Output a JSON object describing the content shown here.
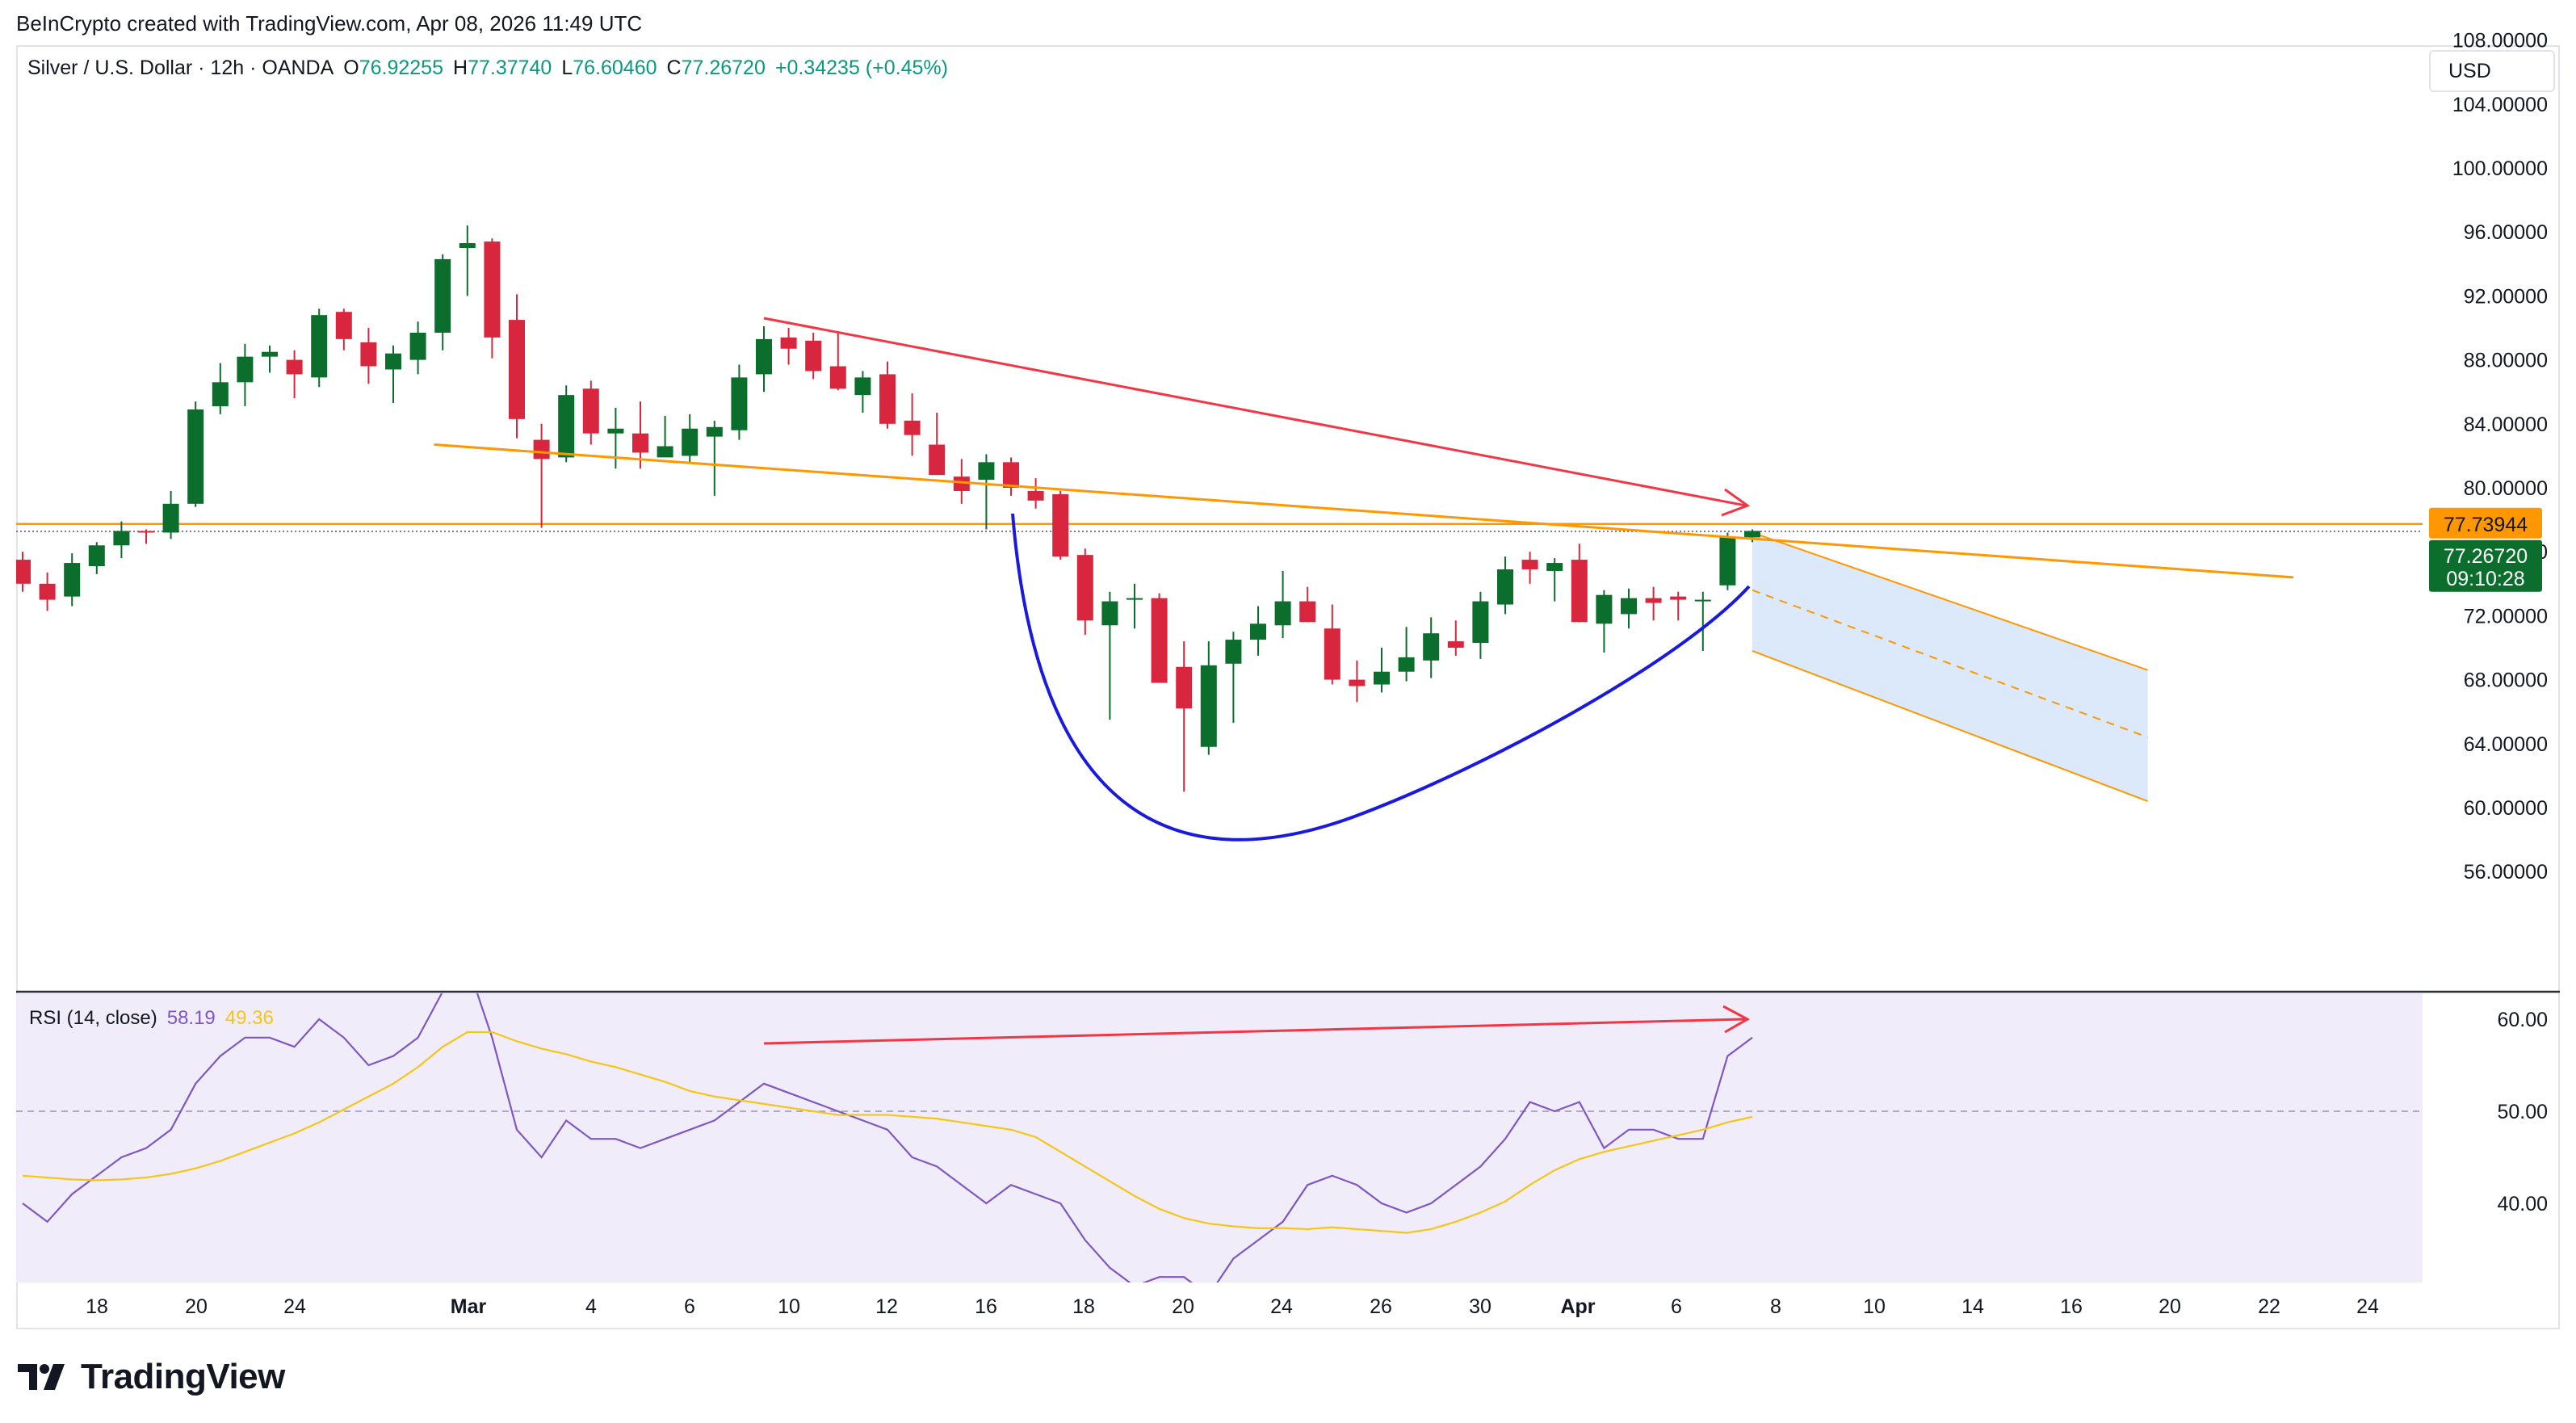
{
  "header": {
    "credit": "BeInCrypto created with TradingView.com, Apr 08, 2026 11:49 UTC"
  },
  "legend": {
    "symbol": "Silver / U.S. Dollar · 12h · OANDA",
    "open_label": "O",
    "open": "76.92255",
    "high_label": "H",
    "high": "77.37740",
    "low_label": "L",
    "low": "76.60460",
    "close_label": "C",
    "close": "77.26720",
    "change": "+0.34235 (+0.45%)"
  },
  "currency_button": "USD",
  "price_badges": {
    "resistance": "77.73944",
    "last_price": "77.26720",
    "countdown": "09:10:28"
  },
  "rsi_legend": {
    "label": "RSI (14, close)",
    "rsi_value": "58.19",
    "ma_value": "49.36"
  },
  "footer": {
    "brand": "TradingView"
  },
  "colors": {
    "up": "#0b6e2c",
    "down": "#d7263d",
    "rsi": "#7e57c2",
    "rsi_ma": "#f5c518",
    "orange": "#ff9800",
    "trend_red": "#f23645",
    "cup_blue": "#1a1adf",
    "forecast_fill": "#d9e8fb"
  },
  "chart_data": [
    {
      "type": "candlestick",
      "title": "Silver / U.S. Dollar · 12h · OANDA",
      "ylim": [
        52.5,
        110
      ],
      "y_ticks": [
        "108.00000",
        "104.00000",
        "100.00000",
        "96.00000",
        "92.00000",
        "88.00000",
        "84.00000",
        "80.00000",
        "76.00000",
        "72.00000",
        "68.00000",
        "64.00000",
        "60.00000",
        "56.00000"
      ],
      "x_ticks": [
        "18",
        "20",
        "24",
        "Mar",
        "4",
        "6",
        "10",
        "12",
        "16",
        "18",
        "20",
        "24",
        "26",
        "30",
        "Apr",
        "6",
        "8",
        "10",
        "14",
        "16",
        "20",
        "22",
        "24"
      ],
      "ohlc": [
        [
          75.5,
          76.0,
          73.5,
          74.0
        ],
        [
          74.0,
          74.7,
          72.3,
          73.0
        ],
        [
          73.2,
          75.9,
          72.6,
          75.3
        ],
        [
          75.1,
          76.6,
          74.6,
          76.4
        ],
        [
          76.4,
          77.9,
          75.6,
          77.3
        ],
        [
          77.3,
          77.4,
          76.5,
          77.2
        ],
        [
          77.2,
          79.8,
          76.8,
          79.0
        ],
        [
          79.0,
          85.4,
          78.8,
          84.9
        ],
        [
          85.1,
          87.8,
          84.6,
          86.6
        ],
        [
          86.6,
          89.0,
          85.1,
          88.2
        ],
        [
          88.2,
          88.9,
          87.2,
          88.5
        ],
        [
          88.0,
          88.6,
          85.6,
          87.1
        ],
        [
          86.9,
          91.2,
          86.3,
          90.8
        ],
        [
          91.0,
          91.2,
          88.6,
          89.3
        ],
        [
          89.1,
          90.0,
          86.5,
          87.6
        ],
        [
          87.4,
          88.9,
          85.3,
          88.4
        ],
        [
          88.0,
          90.4,
          87.1,
          89.7
        ],
        [
          89.7,
          94.6,
          88.6,
          94.3
        ],
        [
          95.0,
          96.4,
          92.0,
          95.3
        ],
        [
          95.4,
          95.6,
          88.1,
          89.4
        ],
        [
          90.5,
          92.1,
          83.1,
          84.3
        ],
        [
          83.0,
          84.0,
          77.5,
          81.8
        ],
        [
          81.9,
          86.4,
          81.6,
          85.8
        ],
        [
          86.2,
          86.7,
          82.7,
          83.4
        ],
        [
          83.4,
          85.0,
          81.2,
          83.7
        ],
        [
          83.4,
          85.4,
          81.2,
          82.2
        ],
        [
          81.9,
          84.5,
          82.1,
          82.6
        ],
        [
          82.0,
          84.6,
          81.6,
          83.7
        ],
        [
          83.2,
          84.2,
          79.5,
          83.8
        ],
        [
          83.6,
          87.7,
          83.0,
          86.9
        ],
        [
          87.1,
          90.1,
          86.0,
          89.3
        ],
        [
          89.4,
          90.0,
          87.7,
          88.7
        ],
        [
          89.2,
          89.7,
          86.8,
          87.3
        ],
        [
          87.6,
          89.8,
          86.1,
          86.2
        ],
        [
          85.8,
          87.3,
          84.7,
          86.9
        ],
        [
          87.1,
          87.9,
          83.7,
          84.0
        ],
        [
          84.2,
          85.9,
          82.0,
          83.3
        ],
        [
          82.7,
          84.7,
          81.1,
          80.8
        ],
        [
          80.7,
          81.8,
          79.0,
          79.8
        ],
        [
          80.5,
          82.1,
          77.4,
          81.6
        ],
        [
          81.6,
          81.9,
          79.5,
          80.0
        ],
        [
          79.8,
          80.6,
          78.7,
          79.2
        ],
        [
          79.6,
          79.8,
          75.5,
          75.7
        ],
        [
          75.8,
          76.2,
          70.8,
          71.7
        ],
        [
          71.4,
          73.5,
          65.5,
          72.9
        ],
        [
          73.0,
          74.0,
          71.2,
          73.1
        ],
        [
          73.1,
          73.4,
          67.8,
          67.8
        ],
        [
          68.8,
          70.4,
          61.0,
          66.2
        ],
        [
          63.8,
          70.4,
          63.3,
          68.9
        ],
        [
          69.0,
          71.0,
          65.3,
          70.5
        ],
        [
          70.5,
          72.6,
          69.5,
          71.5
        ],
        [
          71.4,
          74.8,
          70.6,
          72.9
        ],
        [
          72.9,
          73.8,
          71.6,
          71.6
        ],
        [
          71.2,
          72.7,
          67.7,
          68.0
        ],
        [
          68.0,
          69.2,
          66.6,
          67.6
        ],
        [
          67.7,
          70.0,
          67.2,
          68.5
        ],
        [
          68.5,
          71.3,
          67.9,
          69.4
        ],
        [
          69.2,
          71.9,
          68.1,
          70.9
        ],
        [
          70.4,
          71.7,
          69.5,
          70.0
        ],
        [
          70.3,
          73.5,
          69.3,
          72.9
        ],
        [
          72.7,
          75.7,
          72.1,
          74.9
        ],
        [
          75.5,
          76.0,
          74.0,
          74.9
        ],
        [
          74.8,
          75.6,
          72.9,
          75.3
        ],
        [
          75.5,
          76.5,
          71.6,
          71.6
        ],
        [
          71.5,
          73.6,
          69.7,
          73.3
        ],
        [
          72.1,
          73.7,
          71.2,
          73.1
        ],
        [
          73.1,
          73.8,
          71.7,
          72.8
        ],
        [
          73.2,
          73.5,
          71.7,
          73.0
        ],
        [
          72.9,
          73.5,
          69.8,
          73.0
        ],
        [
          73.9,
          77.2,
          73.6,
          76.9
        ],
        [
          76.9,
          77.4,
          76.6,
          77.3
        ]
      ],
      "annotations": {
        "horizontal_resistance": 77.73944,
        "descending_resistance_start": [
          16,
          82.7
        ],
        "descending_resistance_end": [
          80,
          74.4
        ],
        "price_trendline_start": [
          30,
          95.0
        ],
        "price_trendline_end": [
          67,
          83.5
        ],
        "cup_points": [
          [
            38,
            82.5
          ],
          [
            45,
            60.8
          ],
          [
            70,
            77.6
          ]
        ],
        "projection_channel_top": [
          [
            70,
            77.2
          ],
          [
            86,
            68.6
          ]
        ],
        "projection_channel_bottom": [
          [
            70,
            69.8
          ],
          [
            86,
            60.4
          ]
        ],
        "projection_mid": [
          [
            70,
            73.6
          ],
          [
            86,
            64.4
          ]
        ]
      }
    },
    {
      "type": "line",
      "title": "RSI (14, close)",
      "ylim": [
        32,
        62
      ],
      "y_ticks": [
        "60.00",
        "50.00",
        "40.00"
      ],
      "midline": 50,
      "series": [
        {
          "name": "RSI",
          "values": [
            40,
            38,
            41,
            43,
            45,
            46,
            48,
            53,
            56,
            58,
            58,
            57,
            60,
            58,
            55,
            56,
            58,
            63,
            66,
            58,
            48,
            45,
            49,
            47,
            47,
            46,
            47,
            48,
            49,
            51,
            53,
            52,
            51,
            50,
            49,
            48,
            45,
            44,
            42,
            40,
            42,
            41,
            40,
            36,
            33,
            31,
            32,
            32,
            30,
            34,
            36,
            38,
            42,
            43,
            42,
            40,
            39,
            40,
            42,
            44,
            47,
            51,
            50,
            51,
            46,
            48,
            48,
            47,
            47,
            56,
            58
          ]
        },
        {
          "name": "RSI MA",
          "values": [
            43,
            42.8,
            42.6,
            42.5,
            42.6,
            42.8,
            43.2,
            43.8,
            44.6,
            45.6,
            46.6,
            47.6,
            48.8,
            50.2,
            51.6,
            53,
            54.8,
            57,
            58.6,
            58.6,
            57.6,
            56.8,
            56.2,
            55.4,
            54.8,
            54,
            53.2,
            52.2,
            51.6,
            51.2,
            50.8,
            50.4,
            50,
            49.6,
            49.6,
            49.6,
            49.4,
            49.2,
            48.8,
            48.4,
            48,
            47.2,
            45.6,
            44,
            42.4,
            40.8,
            39.4,
            38.4,
            37.8,
            37.5,
            37.3,
            37.3,
            37.2,
            37.4,
            37.2,
            37.0,
            36.8,
            37.2,
            38.0,
            39.0,
            40.2,
            42.0,
            43.6,
            44.8,
            45.6,
            46.2,
            46.8,
            47.4,
            48.0,
            48.8,
            49.4
          ]
        }
      ]
    }
  ]
}
